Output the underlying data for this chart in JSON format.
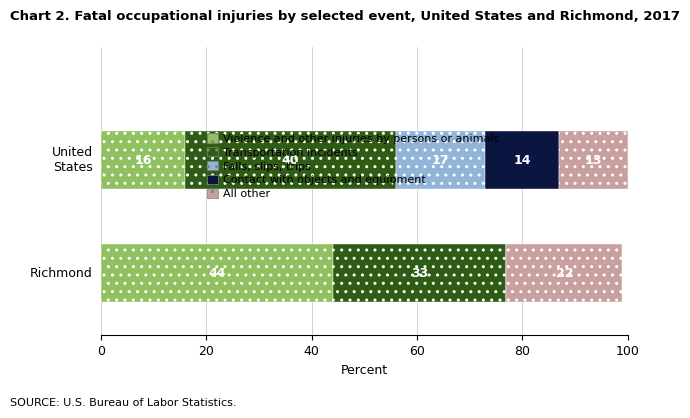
{
  "title": "Chart 2. Fatal occupational injuries by selected event, United States and Richmond, 2017",
  "categories": [
    "United\nStates",
    "Richmond"
  ],
  "series": [
    {
      "label": "Violence and other injuries by persons or animals",
      "values": [
        16,
        44
      ],
      "color": "#90c060",
      "hatch": ".."
    },
    {
      "label": "Transportation incidents",
      "values": [
        40,
        33
      ],
      "color": "#2e5c14",
      "hatch": ".."
    },
    {
      "label": "Falls, slips, trips",
      "values": [
        17,
        0
      ],
      "color": "#92b4d8",
      "hatch": ".."
    },
    {
      "label": "Contact with objects and equipment",
      "values": [
        14,
        0
      ],
      "color": "#0a1540",
      "hatch": ""
    },
    {
      "label": "All other",
      "values": [
        13,
        22
      ],
      "color": "#c9a0a0",
      "hatch": ".."
    }
  ],
  "xlabel": "Percent",
  "xlim": [
    0,
    100
  ],
  "xticks": [
    0,
    20,
    40,
    60,
    80,
    100
  ],
  "source": "SOURCE: U.S. Bureau of Labor Statistics.",
  "title_fontsize": 9.5,
  "label_fontsize": 9,
  "tick_fontsize": 9,
  "source_fontsize": 8,
  "bar_height": 0.52
}
